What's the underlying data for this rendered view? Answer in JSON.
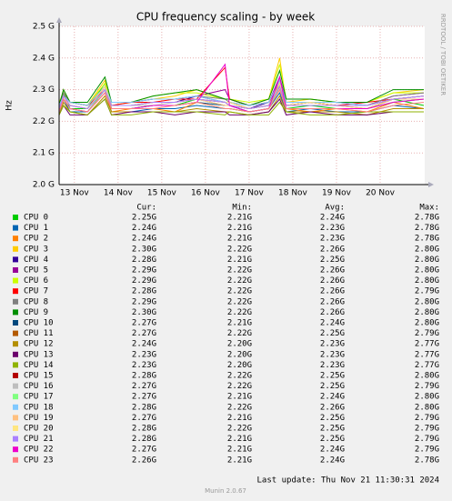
{
  "chart_data": {
    "type": "line",
    "title": "CPU frequency scaling - by week",
    "y_label": "Hz",
    "side_text": "RRDTOOL / TOBI OETIKER",
    "stat_headers": [
      "Cur:",
      "Min:",
      "Avg:",
      "Max:"
    ],
    "last_update": "Last update: Thu Nov 21 11:30:31 2024",
    "footer": "Munin 2.0.67",
    "grid": true,
    "xlim": [
      13.15,
      21.52
    ],
    "ylim": [
      2.0,
      2.5
    ],
    "xticks": [
      {
        "value": 13.5,
        "label": "13 Nov"
      },
      {
        "value": 14.5,
        "label": "14 Nov"
      },
      {
        "value": 15.5,
        "label": "15 Nov"
      },
      {
        "value": 16.5,
        "label": "16 Nov"
      },
      {
        "value": 17.5,
        "label": "17 Nov"
      },
      {
        "value": 18.5,
        "label": "18 Nov"
      },
      {
        "value": 19.5,
        "label": "19 Nov"
      },
      {
        "value": 20.5,
        "label": "20 Nov"
      }
    ],
    "yticks": [
      {
        "value": 2.0,
        "label": "2.0 G"
      },
      {
        "value": 2.1,
        "label": "2.1 G"
      },
      {
        "value": 2.2,
        "label": "2.2 G"
      },
      {
        "value": 2.3,
        "label": "2.3 G"
      },
      {
        "value": 2.4,
        "label": "2.4 G"
      },
      {
        "value": 2.5,
        "label": "2.5 G"
      }
    ],
    "x": [
      13.15,
      13.25,
      13.4,
      13.8,
      14.2,
      14.35,
      14.8,
      15.3,
      15.8,
      16.3,
      16.95,
      17.05,
      17.5,
      17.95,
      18.2,
      18.35,
      18.9,
      19.5,
      20.2,
      20.8,
      21.5
    ],
    "series": [
      {
        "name": "CPU 0",
        "color": "#00cc00",
        "stats": [
          "2.25G",
          "2.21G",
          "2.24G",
          "2.78G"
        ],
        "values": [
          2.24,
          2.29,
          2.24,
          2.24,
          2.32,
          2.24,
          2.24,
          2.25,
          2.25,
          2.27,
          2.25,
          2.25,
          2.24,
          2.25,
          2.31,
          2.24,
          2.25,
          2.24,
          2.24,
          2.27,
          2.25
        ]
      },
      {
        "name": "CPU 1",
        "color": "#0066b3",
        "stats": [
          "2.24G",
          "2.21G",
          "2.23G",
          "2.78G"
        ],
        "values": [
          2.23,
          2.27,
          2.23,
          2.23,
          2.3,
          2.23,
          2.23,
          2.24,
          2.24,
          2.25,
          2.24,
          2.24,
          2.23,
          2.24,
          2.29,
          2.23,
          2.24,
          2.23,
          2.23,
          2.25,
          2.24
        ]
      },
      {
        "name": "CPU 2",
        "color": "#ff8000",
        "stats": [
          "2.24G",
          "2.21G",
          "2.23G",
          "2.78G"
        ],
        "values": [
          2.23,
          2.27,
          2.24,
          2.23,
          2.3,
          2.23,
          2.24,
          2.24,
          2.23,
          2.26,
          2.24,
          2.24,
          2.23,
          2.24,
          2.3,
          2.24,
          2.23,
          2.24,
          2.23,
          2.26,
          2.24
        ]
      },
      {
        "name": "CPU 3",
        "color": "#ffcc00",
        "stats": [
          "2.30G",
          "2.22G",
          "2.26G",
          "2.80G"
        ],
        "values": [
          2.25,
          2.3,
          2.26,
          2.25,
          2.33,
          2.25,
          2.26,
          2.27,
          2.28,
          2.3,
          2.27,
          2.27,
          2.25,
          2.27,
          2.4,
          2.26,
          2.27,
          2.26,
          2.26,
          2.29,
          2.3
        ]
      },
      {
        "name": "CPU 4",
        "color": "#330099",
        "stats": [
          "2.28G",
          "2.21G",
          "2.25G",
          "2.80G"
        ],
        "values": [
          2.24,
          2.28,
          2.25,
          2.24,
          2.31,
          2.25,
          2.25,
          2.26,
          2.26,
          2.28,
          2.26,
          2.26,
          2.24,
          2.26,
          2.32,
          2.25,
          2.26,
          2.25,
          2.25,
          2.27,
          2.28
        ]
      },
      {
        "name": "CPU 5",
        "color": "#990099",
        "stats": [
          "2.29G",
          "2.22G",
          "2.26G",
          "2.80G"
        ],
        "values": [
          2.25,
          2.29,
          2.26,
          2.25,
          2.31,
          2.26,
          2.26,
          2.27,
          2.27,
          2.28,
          2.3,
          2.27,
          2.25,
          2.26,
          2.34,
          2.26,
          2.26,
          2.26,
          2.25,
          2.28,
          2.29
        ]
      },
      {
        "name": "CPU 6",
        "color": "#ccff00",
        "stats": [
          "2.29G",
          "2.22G",
          "2.26G",
          "2.80G"
        ],
        "values": [
          2.26,
          2.29,
          2.26,
          2.25,
          2.32,
          2.26,
          2.26,
          2.28,
          2.29,
          2.29,
          2.27,
          2.27,
          2.26,
          2.27,
          2.38,
          2.27,
          2.27,
          2.26,
          2.26,
          2.29,
          2.29
        ]
      },
      {
        "name": "CPU 7",
        "color": "#ff0000",
        "stats": [
          "2.28G",
          "2.22G",
          "2.26G",
          "2.79G"
        ],
        "values": [
          2.25,
          2.28,
          2.26,
          2.25,
          2.3,
          2.25,
          2.26,
          2.26,
          2.27,
          2.27,
          2.37,
          2.27,
          2.25,
          2.26,
          2.31,
          2.26,
          2.26,
          2.25,
          2.26,
          2.27,
          2.28
        ]
      },
      {
        "name": "CPU 8",
        "color": "#808080",
        "stats": [
          "2.29G",
          "2.22G",
          "2.26G",
          "2.80G"
        ],
        "values": [
          2.25,
          2.29,
          2.26,
          2.25,
          2.31,
          2.26,
          2.26,
          2.27,
          2.27,
          2.28,
          2.27,
          2.26,
          2.25,
          2.26,
          2.33,
          2.26,
          2.26,
          2.26,
          2.25,
          2.28,
          2.29
        ]
      },
      {
        "name": "CPU 9",
        "color": "#008f00",
        "stats": [
          "2.30G",
          "2.22G",
          "2.26G",
          "2.80G"
        ],
        "values": [
          2.25,
          2.3,
          2.26,
          2.26,
          2.34,
          2.26,
          2.26,
          2.28,
          2.29,
          2.3,
          2.27,
          2.27,
          2.25,
          2.27,
          2.36,
          2.27,
          2.27,
          2.26,
          2.26,
          2.3,
          2.3
        ]
      },
      {
        "name": "CPU 10",
        "color": "#00487d",
        "stats": [
          "2.27G",
          "2.21G",
          "2.24G",
          "2.80G"
        ],
        "values": [
          2.23,
          2.27,
          2.24,
          2.23,
          2.3,
          2.24,
          2.24,
          2.25,
          2.25,
          2.26,
          2.25,
          2.25,
          2.23,
          2.24,
          2.31,
          2.24,
          2.24,
          2.24,
          2.24,
          2.26,
          2.27
        ]
      },
      {
        "name": "CPU 11",
        "color": "#b35a00",
        "stats": [
          "2.27G",
          "2.22G",
          "2.25G",
          "2.79G"
        ],
        "values": [
          2.24,
          2.28,
          2.25,
          2.24,
          2.3,
          2.25,
          2.25,
          2.26,
          2.26,
          2.27,
          2.26,
          2.25,
          2.24,
          2.25,
          2.31,
          2.25,
          2.25,
          2.25,
          2.24,
          2.27,
          2.27
        ]
      },
      {
        "name": "CPU 12",
        "color": "#b38f00",
        "stats": [
          "2.24G",
          "2.20G",
          "2.23G",
          "2.77G"
        ],
        "values": [
          2.22,
          2.26,
          2.23,
          2.22,
          2.28,
          2.23,
          2.23,
          2.23,
          2.23,
          2.24,
          2.23,
          2.23,
          2.22,
          2.23,
          2.28,
          2.23,
          2.23,
          2.23,
          2.22,
          2.24,
          2.24
        ]
      },
      {
        "name": "CPU 13",
        "color": "#6b006b",
        "stats": [
          "2.23G",
          "2.20G",
          "2.23G",
          "2.77G"
        ],
        "values": [
          2.22,
          2.25,
          2.22,
          2.22,
          2.27,
          2.22,
          2.23,
          2.23,
          2.22,
          2.23,
          2.23,
          2.22,
          2.22,
          2.23,
          2.27,
          2.22,
          2.23,
          2.22,
          2.22,
          2.23,
          2.23
        ]
      },
      {
        "name": "CPU 14",
        "color": "#8fb300",
        "stats": [
          "2.23G",
          "2.20G",
          "2.23G",
          "2.77G"
        ],
        "values": [
          2.22,
          2.25,
          2.23,
          2.22,
          2.27,
          2.22,
          2.22,
          2.23,
          2.23,
          2.23,
          2.22,
          2.23,
          2.22,
          2.22,
          2.26,
          2.23,
          2.22,
          2.22,
          2.23,
          2.23,
          2.23
        ]
      },
      {
        "name": "CPU 15",
        "color": "#b30000",
        "stats": [
          "2.28G",
          "2.22G",
          "2.25G",
          "2.80G"
        ],
        "values": [
          2.24,
          2.28,
          2.25,
          2.24,
          2.31,
          2.25,
          2.25,
          2.26,
          2.26,
          2.27,
          2.26,
          2.26,
          2.24,
          2.25,
          2.32,
          2.25,
          2.26,
          2.25,
          2.25,
          2.27,
          2.28
        ]
      },
      {
        "name": "CPU 16",
        "color": "#bebebe",
        "stats": [
          "2.27G",
          "2.22G",
          "2.25G",
          "2.79G"
        ],
        "values": [
          2.24,
          2.27,
          2.25,
          2.24,
          2.3,
          2.25,
          2.25,
          2.25,
          2.26,
          2.27,
          2.25,
          2.25,
          2.24,
          2.25,
          2.3,
          2.25,
          2.25,
          2.25,
          2.24,
          2.26,
          2.27
        ]
      },
      {
        "name": "CPU 17",
        "color": "#80ff80",
        "stats": [
          "2.27G",
          "2.21G",
          "2.24G",
          "2.80G"
        ],
        "values": [
          2.23,
          2.27,
          2.24,
          2.23,
          2.3,
          2.24,
          2.24,
          2.25,
          2.25,
          2.26,
          2.24,
          2.24,
          2.23,
          2.24,
          2.31,
          2.24,
          2.24,
          2.24,
          2.24,
          2.26,
          2.27
        ]
      },
      {
        "name": "CPU 18",
        "color": "#80c9ff",
        "stats": [
          "2.28G",
          "2.22G",
          "2.26G",
          "2.80G"
        ],
        "values": [
          2.25,
          2.28,
          2.26,
          2.25,
          2.31,
          2.26,
          2.26,
          2.27,
          2.27,
          2.28,
          2.26,
          2.26,
          2.25,
          2.26,
          2.33,
          2.26,
          2.26,
          2.26,
          2.25,
          2.27,
          2.28
        ]
      },
      {
        "name": "CPU 19",
        "color": "#ffc080",
        "stats": [
          "2.27G",
          "2.21G",
          "2.25G",
          "2.79G"
        ],
        "values": [
          2.24,
          2.27,
          2.25,
          2.24,
          2.3,
          2.25,
          2.25,
          2.26,
          2.26,
          2.27,
          2.25,
          2.25,
          2.24,
          2.25,
          2.31,
          2.25,
          2.25,
          2.25,
          2.24,
          2.27,
          2.27
        ]
      },
      {
        "name": "CPU 20",
        "color": "#ffe680",
        "stats": [
          "2.28G",
          "2.22G",
          "2.25G",
          "2.79G"
        ],
        "values": [
          2.24,
          2.28,
          2.25,
          2.24,
          2.31,
          2.25,
          2.25,
          2.26,
          2.26,
          2.27,
          2.26,
          2.26,
          2.24,
          2.25,
          2.32,
          2.25,
          2.26,
          2.25,
          2.25,
          2.27,
          2.28
        ]
      },
      {
        "name": "CPU 21",
        "color": "#aa80ff",
        "stats": [
          "2.28G",
          "2.21G",
          "2.25G",
          "2.79G"
        ],
        "values": [
          2.24,
          2.28,
          2.25,
          2.24,
          2.3,
          2.25,
          2.25,
          2.26,
          2.26,
          2.27,
          2.26,
          2.25,
          2.24,
          2.25,
          2.31,
          2.25,
          2.25,
          2.25,
          2.25,
          2.27,
          2.28
        ]
      },
      {
        "name": "CPU 22",
        "color": "#ee00cc",
        "stats": [
          "2.27G",
          "2.21G",
          "2.24G",
          "2.79G"
        ],
        "values": [
          2.23,
          2.27,
          2.24,
          2.23,
          2.29,
          2.24,
          2.24,
          2.25,
          2.25,
          2.26,
          2.38,
          2.25,
          2.23,
          2.24,
          2.34,
          2.24,
          2.24,
          2.24,
          2.24,
          2.26,
          2.27
        ]
      },
      {
        "name": "CPU 23",
        "color": "#ff8080",
        "stats": [
          "2.26G",
          "2.21G",
          "2.24G",
          "2.78G"
        ],
        "values": [
          2.23,
          2.27,
          2.24,
          2.23,
          2.29,
          2.24,
          2.24,
          2.24,
          2.25,
          2.26,
          2.24,
          2.24,
          2.23,
          2.24,
          2.3,
          2.24,
          2.24,
          2.24,
          2.23,
          2.25,
          2.26
        ]
      }
    ]
  }
}
